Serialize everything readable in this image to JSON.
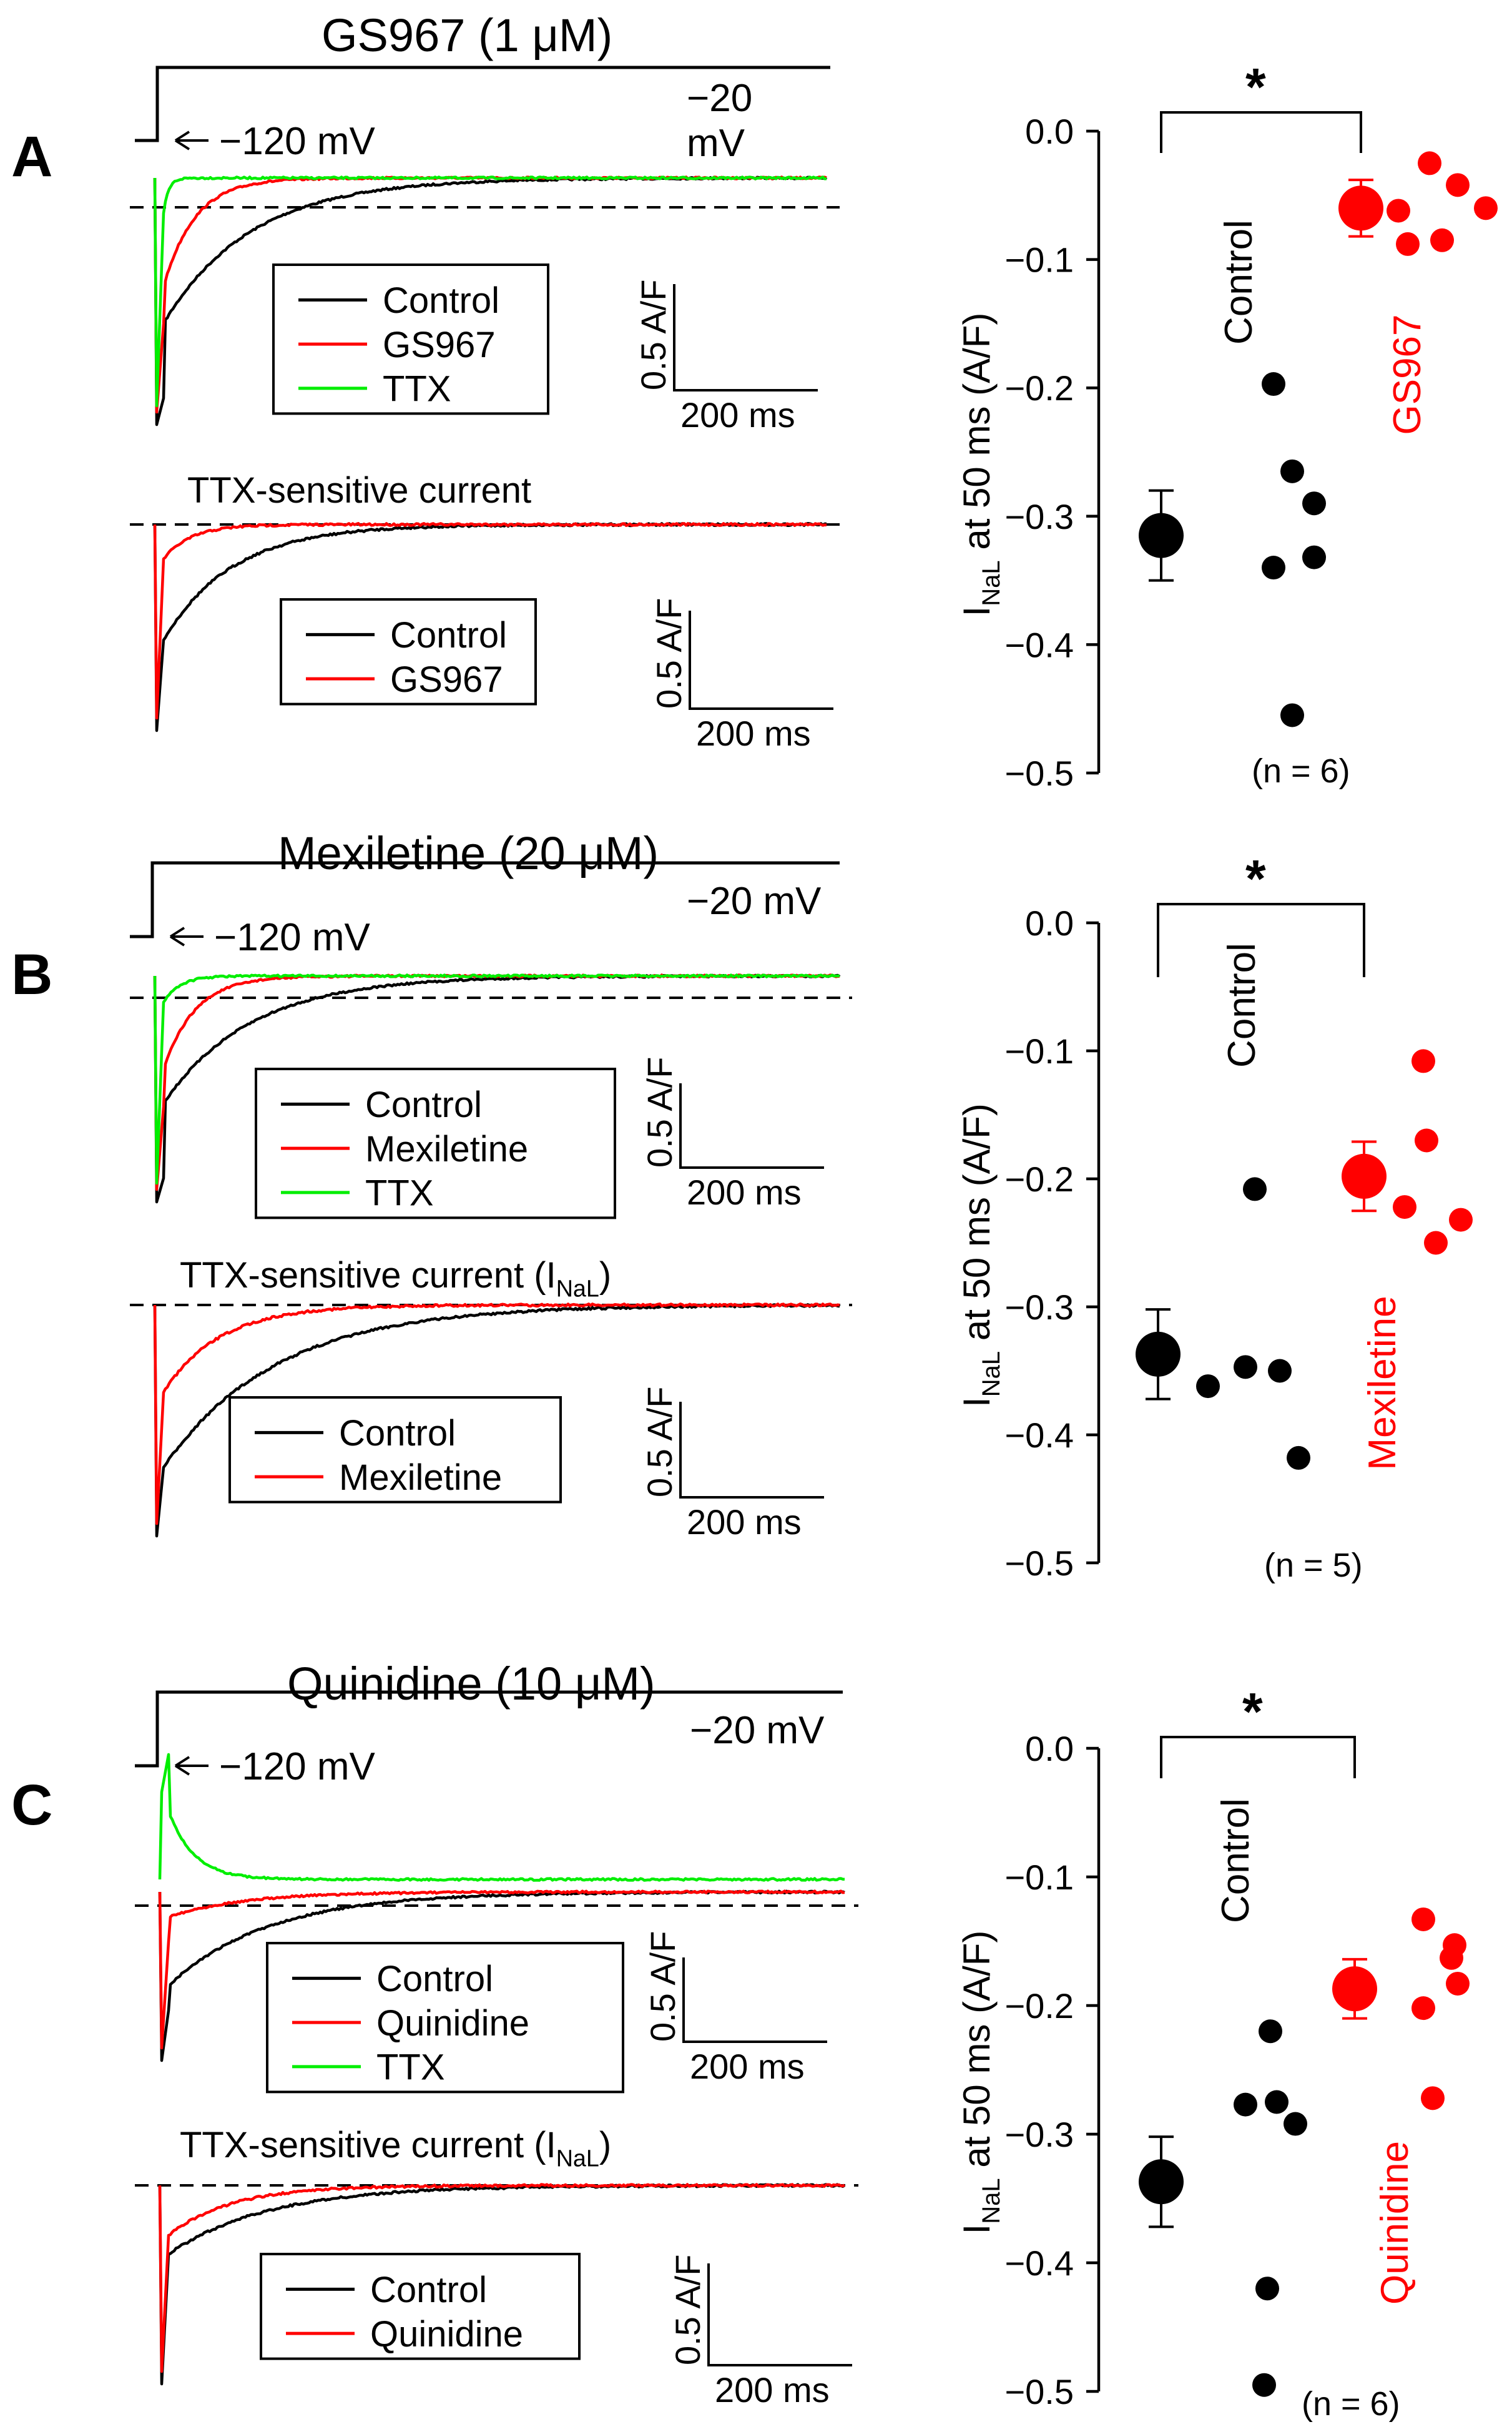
{
  "colors": {
    "control": "#000000",
    "drug": "#ff0000",
    "ttx": "#00ee00",
    "axis": "#000000"
  },
  "panels": [
    {
      "letter": "A",
      "title": "GS967 (1 μM)",
      "hold_label": "−120 mV",
      "step_label": "−20 mV",
      "step_label_lines": [
        "−20",
        "mV"
      ],
      "legend_top": [
        "Control",
        "GS967",
        "TTX"
      ],
      "sub_title": "TTX-sensitive current",
      "legend_bottom": [
        "Control",
        "GS967"
      ],
      "scale_y": "0.5 A/F",
      "scale_x": "200 ms",
      "drug_name": "GS967",
      "control_label": "Control",
      "significance": "*",
      "n_label": "(n = 6)",
      "y_axis_label_main": "I",
      "y_axis_label_sub": "NaL",
      "y_axis_label_rest": " at 50 ms (A/F)",
      "y_ticks": [
        "0.0",
        "−0.1",
        "−0.2",
        "−0.3",
        "−0.4",
        "−0.5"
      ]
    },
    {
      "letter": "B",
      "title": "Mexiletine (20 μM)",
      "hold_label": "−120 mV",
      "step_label": "−20 mV",
      "legend_top": [
        "Control",
        "Mexiletine",
        "TTX"
      ],
      "sub_title": "TTX-sensitive current (I",
      "sub_title_sub": "NaL",
      "sub_title_end": ")",
      "legend_bottom": [
        "Control",
        "Mexiletine"
      ],
      "scale_y": "0.5 A/F",
      "scale_x": "200 ms",
      "drug_name": "Mexiletine",
      "control_label": "Control",
      "significance": "*",
      "n_label": "(n = 5)",
      "y_axis_label_main": "I",
      "y_axis_label_sub": "NaL",
      "y_axis_label_rest": " at 50 ms (A/F)",
      "y_ticks": [
        "0.0",
        "−0.1",
        "−0.2",
        "−0.3",
        "−0.4",
        "−0.5"
      ]
    },
    {
      "letter": "C",
      "title": "Quinidine (10 μM)",
      "hold_label": "−120 mV",
      "step_label": "−20 mV",
      "legend_top": [
        "Control",
        "Quinidine",
        "TTX"
      ],
      "sub_title": "TTX-sensitive current (I",
      "sub_title_sub": "NaL",
      "sub_title_end": ")",
      "legend_bottom": [
        "Control",
        "Quinidine"
      ],
      "scale_y": "0.5 A/F",
      "scale_x": "200 ms",
      "drug_name": "Quinidine",
      "control_label": "Control",
      "significance": "*",
      "n_label": "(n = 6)",
      "y_axis_label_main": "I",
      "y_axis_label_sub": "NaL",
      "y_axis_label_rest": " at 50 ms (A/F)",
      "y_ticks": [
        "0.0",
        "−0.1",
        "−0.2",
        "−0.3",
        "−0.4",
        "−0.5"
      ]
    }
  ],
  "chart_data": [
    {
      "type": "scatter",
      "panel": "A",
      "ylabel": "INaL at 50 ms (A/F)",
      "ylim": [
        -0.5,
        0.0
      ],
      "series": [
        {
          "name": "Control",
          "mean": -0.315,
          "sem": 0.035,
          "points": [
            -0.197,
            -0.265,
            -0.29,
            -0.332,
            -0.34,
            -0.455
          ]
        },
        {
          "name": "GS967",
          "mean": -0.06,
          "sem": 0.022,
          "points": [
            -0.025,
            -0.042,
            -0.06,
            -0.062,
            -0.088,
            -0.085
          ]
        }
      ]
    },
    {
      "type": "scatter",
      "panel": "B",
      "ylabel": "INaL at 50 ms (A/F)",
      "ylim": [
        -0.5,
        0.0
      ],
      "series": [
        {
          "name": "Control",
          "mean": -0.337,
          "sem": 0.035,
          "points": [
            -0.208,
            -0.362,
            -0.347,
            -0.35,
            -0.418
          ]
        },
        {
          "name": "Mexiletine",
          "mean": -0.198,
          "sem": 0.027,
          "points": [
            -0.108,
            -0.17,
            -0.222,
            -0.232,
            -0.25
          ]
        }
      ]
    },
    {
      "type": "scatter",
      "panel": "C",
      "ylabel": "INaL at 50 ms (A/F)",
      "ylim": [
        -0.5,
        0.0
      ],
      "series": [
        {
          "name": "Control",
          "mean": -0.337,
          "sem": 0.035,
          "points": [
            -0.22,
            -0.277,
            -0.275,
            -0.292,
            -0.42,
            -0.495
          ]
        },
        {
          "name": "Quinidine",
          "mean": -0.187,
          "sem": 0.023,
          "points": [
            -0.133,
            -0.153,
            -0.163,
            -0.183,
            -0.202,
            -0.272
          ]
        }
      ]
    }
  ]
}
